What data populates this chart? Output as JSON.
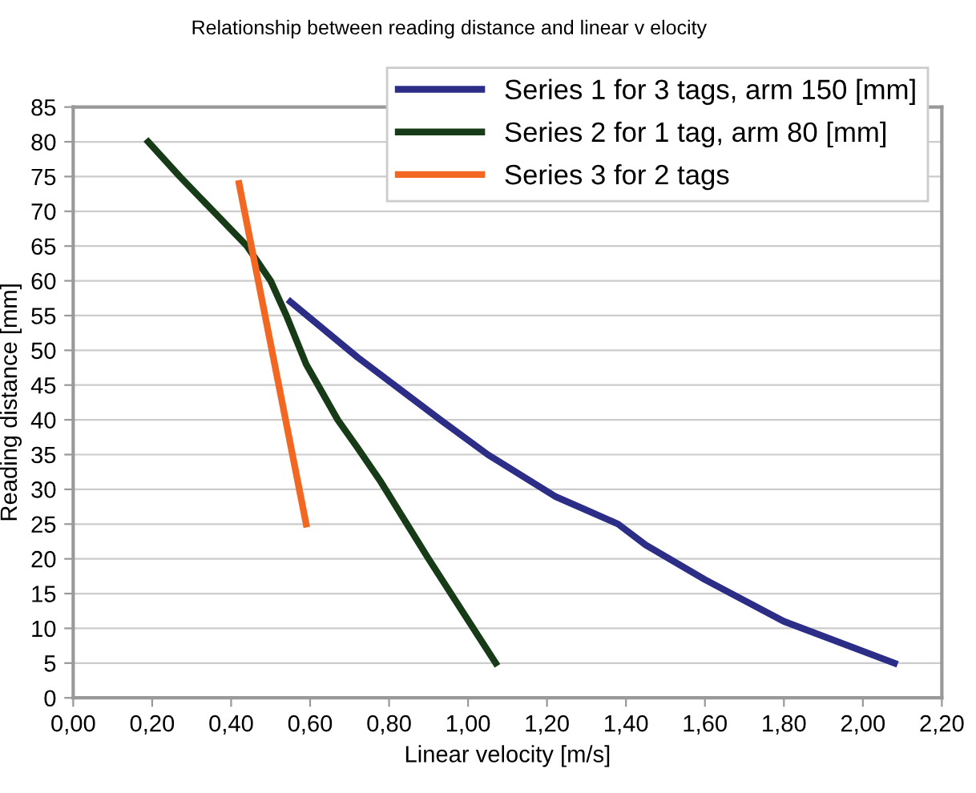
{
  "chart_data": {
    "type": "line",
    "title": "Relationship between reading distance and linear v elocity",
    "xlabel": "Linear velocity [m/s]",
    "ylabel": "Reading distance [mm]",
    "series": [
      {
        "name": "Series 1 for 3 tags, arm 150 [mm]",
        "color": "#2b2d86",
        "x": [
          0.55,
          0.72,
          0.93,
          1.05,
          1.22,
          1.3,
          1.38,
          1.45,
          1.6,
          1.8,
          2.08
        ],
        "values": [
          57,
          49,
          40,
          35,
          29,
          27,
          25,
          22,
          17,
          11,
          5
        ]
      },
      {
        "name": "Series 2 for 1 tag, arm 80 [mm]",
        "color": "#173a17",
        "x": [
          0.19,
          0.27,
          0.44,
          0.5,
          0.54,
          0.59,
          0.63,
          0.67,
          0.72,
          0.78,
          0.9,
          1.07
        ],
        "values": [
          80,
          75,
          65,
          60,
          55,
          48,
          44,
          40,
          36,
          31,
          20,
          5
        ]
      },
      {
        "name": "Series 3 for 2 tags",
        "color": "#f26722",
        "x": [
          0.42,
          0.59
        ],
        "values": [
          74,
          25
        ]
      }
    ],
    "xlim": [
      0,
      2.2
    ],
    "xticks": [
      {
        "value": 0,
        "label": "0,00"
      },
      {
        "value": 0.2,
        "label": "0,20"
      },
      {
        "value": 0.4,
        "label": "0,40"
      },
      {
        "value": 0.6,
        "label": "0,60"
      },
      {
        "value": 0.8,
        "label": "0,80"
      },
      {
        "value": 1.0,
        "label": "1,00"
      },
      {
        "value": 1.2,
        "label": "1,20"
      },
      {
        "value": 1.4,
        "label": "1,40"
      },
      {
        "value": 1.6,
        "label": "1,60"
      },
      {
        "value": 1.8,
        "label": "1,80"
      },
      {
        "value": 2.0,
        "label": "2,00"
      },
      {
        "value": 2.2,
        "label": "2,20"
      }
    ],
    "ylim": [
      0,
      85
    ],
    "yticks": [
      0,
      5,
      10,
      15,
      20,
      25,
      30,
      35,
      40,
      45,
      50,
      55,
      60,
      65,
      70,
      75,
      80,
      85
    ],
    "grid": "y",
    "legend": "top right",
    "marker": "none",
    "line_style": "solid"
  }
}
